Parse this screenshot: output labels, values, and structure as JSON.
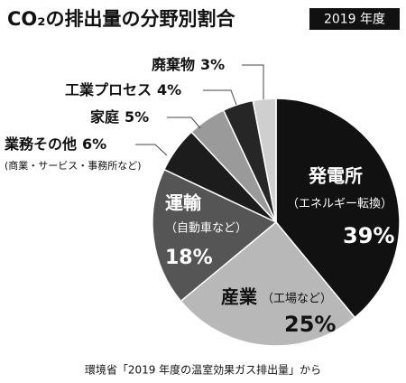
{
  "chart_data": {
    "type": "pie",
    "title": "CO₂の排出量の分野別割合",
    "badge": "2019 年度",
    "source": "環境省「2019 年度の温室効果ガス排出量」から",
    "categories": [
      "発電所",
      "産業",
      "運輸",
      "業務その他",
      "家庭",
      "工業プロセス",
      "廃棄物"
    ],
    "descriptions": [
      "（エネルギー転換）",
      "（工場など）",
      "（自動車など）",
      "(商業・サービス・事務所など)",
      null,
      null,
      null
    ],
    "values": [
      39,
      25,
      18,
      6,
      5,
      4,
      3
    ],
    "value_labels": [
      "39%",
      "25%",
      "18%",
      "6%",
      "5%",
      "4%",
      "3%"
    ],
    "colors": [
      "#111111",
      "#b8b8b8",
      "#555555",
      "#1c1c1c",
      "#9a9a9a",
      "#262626",
      "#cfcfcf"
    ]
  }
}
